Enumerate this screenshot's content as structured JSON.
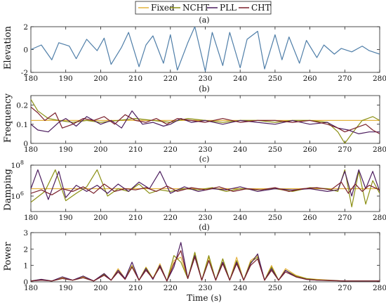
{
  "legend": [
    {
      "label": "Fixed",
      "color": "#e3b23c"
    },
    {
      "label": "NCHT",
      "color": "#8b8f12"
    },
    {
      "label": "PLL",
      "color": "#4b1c5e"
    },
    {
      "label": "CHT",
      "color": "#7a1f2b"
    }
  ],
  "line_color": "#4f7ea8",
  "chart_data": [
    {
      "type": "line",
      "panel_label": "(a)",
      "ylabel": "Elevation",
      "xlim": [
        180,
        280
      ],
      "ylim": [
        -2,
        2
      ],
      "yticks": [
        "-2",
        "0",
        "2"
      ],
      "xticks": [
        "180",
        "190",
        "200",
        "210",
        "220",
        "230",
        "240",
        "250",
        "260",
        "270",
        "280"
      ],
      "series": [
        {
          "x": [
            180,
            183,
            186,
            188,
            191,
            193,
            196,
            199,
            201,
            203,
            206,
            208,
            211,
            213,
            215,
            218,
            220,
            222,
            225,
            227,
            230,
            232,
            235,
            237,
            240,
            242,
            245,
            247,
            250,
            252,
            254,
            257,
            259,
            262,
            264,
            267,
            269,
            272,
            275,
            277,
            280
          ],
          "y": [
            0,
            0.4,
            -0.9,
            0.6,
            0.3,
            -0.8,
            0.9,
            -0.1,
            1.0,
            -1.3,
            0.2,
            1.5,
            -1.5,
            0.4,
            1.2,
            -1.2,
            1.3,
            -1.8,
            0.6,
            2.0,
            -1.9,
            1.5,
            -1.4,
            1.5,
            -1.6,
            0.9,
            1.6,
            -1.7,
            1.3,
            -0.9,
            1.1,
            -1.2,
            0.8,
            -0.7,
            0.4,
            -0.4,
            0.1,
            -0.2,
            0.3,
            -0.1,
            -0.4
          ]
        }
      ]
    },
    {
      "type": "line",
      "panel_label": "(b)",
      "ylabel": "Frequency",
      "xlim": [
        180,
        280
      ],
      "ylim": [
        0,
        0.25
      ],
      "yticks": [
        "0",
        "0.1",
        "0.2"
      ],
      "xticks": [
        "180",
        "190",
        "200",
        "210",
        "220",
        "230",
        "240",
        "250",
        "260",
        "270",
        "280"
      ],
      "series": [
        {
          "x": [
            180,
            280
          ],
          "y": [
            0.12,
            0.12
          ]
        },
        {
          "x": [
            180,
            182,
            185,
            188,
            192,
            196,
            200,
            205,
            210,
            215,
            220,
            225,
            230,
            235,
            240,
            245,
            250,
            255,
            260,
            265,
            268,
            270,
            272,
            275,
            278,
            280
          ],
          "y": [
            0.23,
            0.17,
            0.13,
            0.12,
            0.11,
            0.12,
            0.11,
            0.12,
            0.13,
            0.12,
            0.11,
            0.13,
            0.12,
            0.11,
            0.12,
            0.12,
            0.11,
            0.12,
            0.12,
            0.11,
            0.06,
            -0.02,
            0.05,
            0.12,
            0.14,
            0.12
          ]
        },
        {
          "x": [
            180,
            182,
            185,
            188,
            190,
            193,
            196,
            200,
            203,
            206,
            209,
            212,
            215,
            218,
            220,
            223,
            226,
            230,
            235,
            240,
            245,
            250,
            255,
            260,
            265,
            268,
            271,
            274,
            277,
            280
          ],
          "y": [
            0.1,
            0.07,
            0.06,
            0.11,
            0.13,
            0.09,
            0.14,
            0.1,
            0.12,
            0.08,
            0.17,
            0.1,
            0.11,
            0.09,
            0.1,
            0.13,
            0.11,
            0.12,
            0.1,
            0.12,
            0.11,
            0.1,
            0.12,
            0.1,
            0.11,
            0.08,
            0.07,
            0.05,
            0.06,
            0.06
          ]
        },
        {
          "x": [
            180,
            182,
            184,
            187,
            189,
            192,
            195,
            198,
            201,
            204,
            207,
            210,
            213,
            216,
            219,
            222,
            226,
            230,
            235,
            240,
            245,
            250,
            255,
            260,
            265,
            268,
            270,
            273,
            276,
            278,
            280
          ],
          "y": [
            0.19,
            0.16,
            0.12,
            0.16,
            0.08,
            0.1,
            0.13,
            0.12,
            0.14,
            0.1,
            0.15,
            0.12,
            0.11,
            0.13,
            0.1,
            0.13,
            0.12,
            0.11,
            0.13,
            0.11,
            0.12,
            0.12,
            0.11,
            0.12,
            0.1,
            0.08,
            0.06,
            0.08,
            0.1,
            0.07,
            0.05
          ]
        }
      ]
    },
    {
      "type": "line",
      "panel_label": "(c)",
      "ylabel": "Damping",
      "ylog": true,
      "xlim": [
        180,
        280
      ],
      "ylim": [
        100000,
        100000000
      ],
      "yticks": [
        "10^6",
        "10^8"
      ],
      "xticks": [
        "180",
        "190",
        "200",
        "210",
        "220",
        "230",
        "240",
        "250",
        "260",
        "270",
        "280"
      ],
      "series": [
        {
          "x": [
            180,
            280
          ],
          "y": [
            3000000,
            3000000
          ]
        },
        {
          "x": [
            180,
            184,
            187,
            190,
            193,
            196,
            199,
            202,
            205,
            208,
            211,
            214,
            217,
            220,
            224,
            228,
            232,
            236,
            240,
            245,
            250,
            255,
            260,
            265,
            268,
            270,
            272,
            274,
            276,
            278,
            280
          ],
          "y": [
            400000,
            2000000,
            50000000,
            500000,
            1500000,
            4000000,
            50000000,
            1000000,
            3000000,
            2000000,
            6000000,
            1500000,
            2500000,
            2000000,
            3000000,
            2500000,
            3500000,
            2000000,
            3000000,
            2500000,
            3000000,
            2000000,
            3500000,
            3000000,
            2000000,
            50000000,
            200000,
            40000000,
            300000,
            10000000,
            1500000
          ]
        },
        {
          "x": [
            180,
            182,
            185,
            188,
            190,
            193,
            196,
            199,
            202,
            205,
            208,
            211,
            214,
            217,
            220,
            224,
            228,
            232,
            236,
            240,
            245,
            250,
            255,
            260,
            265,
            268,
            270,
            272,
            274,
            276,
            278,
            280
          ],
          "y": [
            3000000,
            50000000,
            600000,
            40000000,
            800000,
            5000000,
            2000000,
            5000000,
            1500000,
            6000000,
            2000000,
            8000000,
            3000000,
            40000000,
            1500000,
            4000000,
            2000000,
            3000000,
            2500000,
            4000000,
            2000000,
            3000000,
            2500000,
            3000000,
            2000000,
            2500000,
            40000000,
            1000000,
            50000000,
            3000000,
            40000000,
            2000000
          ]
        },
        {
          "x": [
            180,
            183,
            186,
            189,
            192,
            195,
            198,
            201,
            204,
            207,
            210,
            213,
            216,
            219,
            222,
            226,
            230,
            234,
            238,
            242,
            246,
            250,
            254,
            258,
            262,
            266,
            269,
            271,
            273,
            275,
            277,
            280
          ],
          "y": [
            1500000,
            2500000,
            1200000,
            3000000,
            2000000,
            4000000,
            1500000,
            6000000,
            2000000,
            3000000,
            2500000,
            3500000,
            2000000,
            4500000,
            2000000,
            3500000,
            2500000,
            4000000,
            2000000,
            3000000,
            2500000,
            3500000,
            2000000,
            3000000,
            3500000,
            2500000,
            8000000,
            1500000,
            6000000,
            2000000,
            5000000,
            2500000
          ]
        }
      ]
    },
    {
      "type": "line",
      "panel_label": "(d)",
      "ylabel": "Power",
      "xlim": [
        180,
        280
      ],
      "ylim": [
        0,
        3
      ],
      "yticks": [
        "0",
        "1",
        "2",
        "3"
      ],
      "xticks": [
        "180",
        "190",
        "200",
        "210",
        "220",
        "230",
        "240",
        "250",
        "260",
        "270",
        "280"
      ],
      "xlabel": "Time (s)",
      "series": [
        {
          "x": [
            180,
            183,
            186,
            189,
            192,
            195,
            198,
            201,
            203,
            205,
            207,
            209,
            211,
            213,
            215,
            217,
            219,
            221,
            223,
            225,
            227,
            229,
            231,
            233,
            235,
            237,
            239,
            241,
            243,
            245,
            247,
            249,
            251,
            253,
            256,
            259,
            262,
            266,
            270,
            275,
            280
          ],
          "y": [
            0.05,
            0.15,
            0.05,
            0.25,
            0.1,
            0.3,
            0.05,
            0.5,
            0.1,
            0.8,
            0.2,
            1.0,
            0.1,
            0.9,
            0.2,
            1.1,
            0.05,
            1.3,
            1.5,
            0.2,
            1.7,
            0.1,
            1.5,
            0.1,
            1.4,
            0.1,
            1.5,
            0.1,
            1.3,
            1.6,
            0.1,
            1.0,
            0.1,
            0.8,
            0.4,
            0.2,
            0.15,
            0.1,
            0.05,
            0.05,
            0.05
          ]
        },
        {
          "x": [
            180,
            183,
            186,
            189,
            192,
            195,
            198,
            201,
            203,
            205,
            207,
            209,
            211,
            213,
            215,
            217,
            219,
            221,
            223,
            225,
            227,
            229,
            231,
            233,
            235,
            237,
            239,
            241,
            243,
            245,
            247,
            249,
            251,
            253,
            256,
            259,
            262,
            266,
            270,
            275,
            280
          ],
          "y": [
            0.05,
            0.12,
            0.05,
            0.2,
            0.1,
            0.25,
            0.05,
            0.45,
            0.1,
            0.7,
            0.15,
            0.95,
            0.1,
            0.85,
            0.2,
            1.0,
            0.05,
            1.6,
            1.2,
            0.2,
            1.8,
            0.1,
            1.6,
            0.1,
            1.4,
            0.1,
            1.3,
            0.1,
            1.2,
            1.5,
            0.1,
            0.9,
            0.1,
            0.7,
            0.35,
            0.2,
            0.12,
            0.08,
            0.05,
            0.05,
            0.05
          ]
        },
        {
          "x": [
            180,
            183,
            186,
            189,
            192,
            195,
            198,
            201,
            203,
            205,
            207,
            209,
            211,
            213,
            215,
            217,
            219,
            221,
            223,
            225,
            227,
            229,
            231,
            233,
            235,
            237,
            239,
            241,
            243,
            245,
            247,
            249,
            251,
            253,
            256,
            259,
            262,
            266,
            270,
            275,
            280
          ],
          "y": [
            0.05,
            0.15,
            0.05,
            0.3,
            0.1,
            0.35,
            0.05,
            0.5,
            0.1,
            0.7,
            0.2,
            1.2,
            0.1,
            0.8,
            0.15,
            1.0,
            0.05,
            0.9,
            2.4,
            0.2,
            1.6,
            0.1,
            1.3,
            0.1,
            1.2,
            0.1,
            1.2,
            0.1,
            1.1,
            1.7,
            0.1,
            0.8,
            0.1,
            0.7,
            0.3,
            0.15,
            0.1,
            0.08,
            0.05,
            0.05,
            0.05
          ]
        },
        {
          "x": [
            180,
            183,
            186,
            189,
            192,
            195,
            198,
            201,
            203,
            205,
            207,
            209,
            211,
            213,
            215,
            217,
            219,
            221,
            223,
            225,
            227,
            229,
            231,
            233,
            235,
            237,
            239,
            241,
            243,
            245,
            247,
            249,
            251,
            253,
            256,
            259,
            262,
            266,
            270,
            275,
            280
          ],
          "y": [
            0.05,
            0.1,
            0.05,
            0.2,
            0.1,
            0.25,
            0.05,
            0.4,
            0.1,
            0.6,
            0.15,
            0.9,
            0.1,
            0.7,
            0.2,
            0.9,
            0.05,
            1.1,
            1.9,
            0.2,
            1.5,
            0.1,
            1.3,
            0.1,
            1.1,
            0.1,
            1.1,
            0.1,
            1.0,
            1.4,
            0.1,
            0.7,
            0.1,
            0.6,
            0.3,
            0.15,
            0.1,
            0.07,
            0.05,
            0.05,
            0.05
          ]
        }
      ]
    }
  ]
}
